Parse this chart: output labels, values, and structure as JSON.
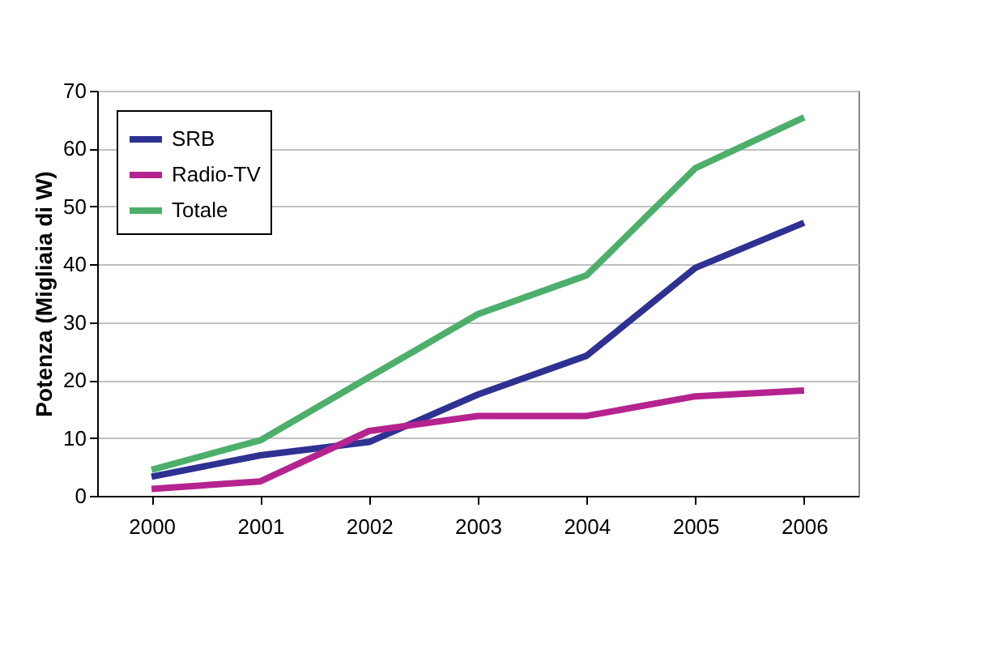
{
  "chart_data": {
    "type": "line",
    "ylabel": "Potenza (Migliaia di W)",
    "categories": [
      "2000",
      "2001",
      "2002",
      "2003",
      "2004",
      "2005",
      "2006"
    ],
    "series": [
      {
        "name": "SRB",
        "color": "#2e3192",
        "values": [
          3.3,
          7,
          9.3,
          17.5,
          24.2,
          39.4,
          47.2
        ]
      },
      {
        "name": "Radio-TV",
        "color": "#b5238f",
        "values": [
          1.2,
          2.5,
          11.2,
          13.8,
          13.8,
          17.2,
          18.2
        ]
      },
      {
        "name": "Totale",
        "color": "#4daf6b",
        "values": [
          4.5,
          9.6,
          20.5,
          31.4,
          38.1,
          56.6,
          65.4
        ]
      }
    ],
    "ylim": [
      0,
      70
    ],
    "yticks": [
      0,
      10,
      20,
      30,
      40,
      50,
      60,
      70
    ],
    "grid": "y",
    "legend": "top left",
    "marker": "none",
    "line_style": "solid"
  }
}
